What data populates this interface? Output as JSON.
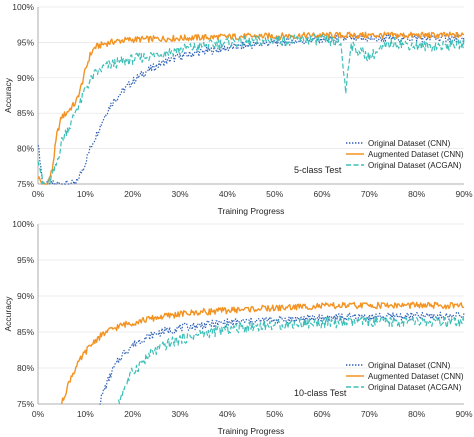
{
  "chart_data": [
    {
      "type": "line",
      "annotation": "5-class Test",
      "xlabel": "Training Progress",
      "ylabel": "Accuracy",
      "xlim": [
        0,
        90
      ],
      "ylim": [
        75,
        100
      ],
      "xticks": [
        "0%",
        "10%",
        "20%",
        "30%",
        "40%",
        "50%",
        "60%",
        "70%",
        "80%",
        "90%"
      ],
      "yticks": [
        "75%",
        "80%",
        "85%",
        "90%",
        "95%",
        "100%"
      ],
      "legend_position": "lower-right",
      "series": [
        {
          "name": "Original Dataset (CNN)",
          "color": "#2e5fb7",
          "dash": "dotted",
          "x": [
            0,
            1,
            2,
            5,
            8,
            9,
            10,
            11,
            12,
            13,
            14,
            15,
            16,
            18,
            20,
            22,
            24,
            26,
            28,
            30,
            35,
            40,
            45,
            50,
            55,
            60,
            65,
            70,
            75,
            80,
            85,
            90
          ],
          "y": [
            81,
            75,
            75,
            75,
            75,
            76.5,
            78,
            80,
            81.5,
            83,
            84.5,
            85.8,
            86.8,
            88.2,
            89.5,
            90.5,
            91.3,
            92,
            92.6,
            93,
            93.7,
            94.2,
            94.6,
            95,
            95.2,
            95.4,
            95.5,
            95.5,
            95.6,
            95.6,
            95.6,
            95.6
          ]
        },
        {
          "name": "Augmented Dataset (CNN)",
          "color": "#f39322",
          "dash": "solid",
          "x": [
            0,
            1,
            2,
            3,
            4,
            5,
            6,
            7,
            8,
            9,
            10,
            11,
            12,
            14,
            16,
            18,
            20,
            25,
            30,
            40,
            50,
            60,
            70,
            80,
            90
          ],
          "y": [
            76,
            75,
            75,
            77,
            82,
            84.5,
            85,
            85.8,
            86.5,
            88.5,
            91,
            93.2,
            94.3,
            94.8,
            95.1,
            95.3,
            95.4,
            95.5,
            95.6,
            95.8,
            95.9,
            96,
            96,
            96,
            96
          ]
        },
        {
          "name": "Original Dataset (ACGAN)",
          "color": "#3dbfb8",
          "dash": "dashed",
          "x": [
            0,
            1,
            2,
            3,
            4,
            5,
            6,
            7,
            8,
            9,
            10,
            12,
            14,
            16,
            18,
            20,
            25,
            30,
            35,
            40,
            50,
            60,
            64,
            65,
            66,
            70,
            75,
            80,
            85,
            90
          ],
          "y": [
            79,
            75,
            75,
            76,
            78,
            81,
            82.5,
            83.5,
            85.5,
            86.5,
            88.5,
            90.5,
            91.5,
            92,
            92.3,
            92.6,
            93.3,
            94,
            94.5,
            95,
            95.3,
            95.4,
            94.8,
            88,
            94.5,
            93,
            95,
            94.5,
            94.5,
            94.8
          ]
        }
      ]
    },
    {
      "type": "line",
      "annotation": "10-class Test",
      "xlabel": "Training Progress",
      "ylabel": "Accuracy",
      "xlim": [
        0,
        90
      ],
      "ylim": [
        75,
        100
      ],
      "xticks": [
        "0%",
        "10%",
        "20%",
        "30%",
        "40%",
        "50%",
        "60%",
        "70%",
        "80%",
        "90%"
      ],
      "yticks": [
        "75%",
        "80%",
        "85%",
        "90%",
        "95%",
        "100%"
      ],
      "legend_position": "lower-right",
      "series": [
        {
          "name": "Original Dataset (CNN)",
          "color": "#2e5fb7",
          "dash": "dotted",
          "x": [
            13,
            14,
            15,
            16,
            17,
            18,
            20,
            22,
            25,
            28,
            30,
            35,
            40,
            45,
            50,
            55,
            60,
            70,
            80,
            90
          ],
          "y": [
            75,
            77,
            78.5,
            80,
            81,
            82,
            83.2,
            84,
            84.8,
            85.3,
            85.6,
            86,
            86.3,
            86.5,
            86.7,
            86.8,
            87,
            87.1,
            87.2,
            87.2
          ]
        },
        {
          "name": "Augmented Dataset (CNN)",
          "color": "#f39322",
          "dash": "solid",
          "x": [
            5,
            6,
            7,
            8,
            9,
            10,
            11,
            12,
            14,
            16,
            18,
            20,
            22,
            25,
            28,
            30,
            35,
            40,
            45,
            50,
            55,
            60,
            70,
            80,
            90
          ],
          "y": [
            75,
            77,
            78.8,
            80,
            81.2,
            82.2,
            83,
            83.8,
            84.8,
            85.5,
            86,
            86.3,
            86.6,
            87,
            87.3,
            87.5,
            87.8,
            88,
            88.2,
            88.3,
            88.5,
            88.6,
            88.7,
            88.7,
            88.6
          ]
        },
        {
          "name": "Original Dataset (ACGAN)",
          "color": "#3dbfb8",
          "dash": "dashed",
          "x": [
            17,
            18,
            19,
            20,
            22,
            24,
            26,
            28,
            30,
            35,
            40,
            45,
            50,
            55,
            60,
            65,
            70,
            75,
            80,
            85,
            90
          ],
          "y": [
            75,
            77,
            78.3,
            79.5,
            80.8,
            82,
            82.8,
            83.5,
            84,
            84.8,
            85.4,
            85.8,
            86,
            86.2,
            86.3,
            86.3,
            86.4,
            86.4,
            86.4,
            86.3,
            86.2
          ]
        }
      ]
    }
  ]
}
